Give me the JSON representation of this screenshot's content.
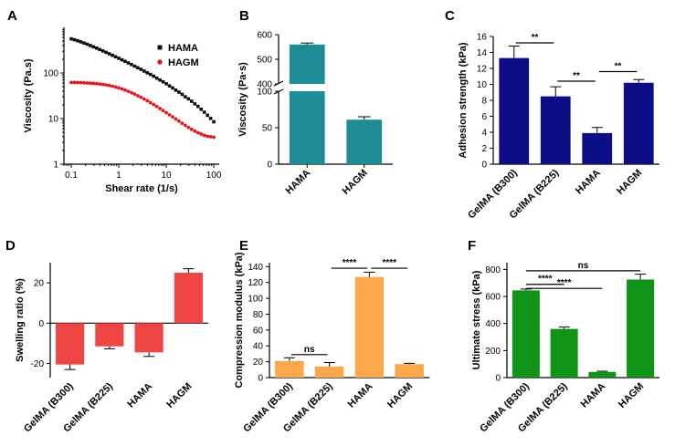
{
  "figure": {
    "panel_labels": [
      "A",
      "B",
      "C",
      "D",
      "E",
      "F"
    ]
  },
  "chart_data": [
    {
      "panel": "A",
      "type": "scatter",
      "xlabel": "Shear rate (1/s)",
      "ylabel": "Viscosity (Pa.s)",
      "xscale": "log",
      "yscale": "log",
      "xlim": [
        0.07,
        130
      ],
      "ylim": [
        1,
        1000
      ],
      "xticks": [
        0.1,
        1,
        10,
        100
      ],
      "xtick_labels": [
        "0.1",
        "1",
        "10",
        "100"
      ],
      "yticks": [
        1,
        10,
        100
      ],
      "ytick_labels": [
        "1",
        "10",
        "100"
      ],
      "legend": "top-right",
      "series": [
        {
          "name": "HAMA",
          "color": "#111111",
          "marker": "square",
          "x": [
            0.1,
            0.1166,
            0.1359,
            0.1585,
            0.1848,
            0.2154,
            0.2512,
            0.2929,
            0.3415,
            0.3981,
            0.4642,
            0.5412,
            0.631,
            0.7356,
            0.8577,
            1,
            1.166,
            1.359,
            1.585,
            1.848,
            2.154,
            2.512,
            2.929,
            3.415,
            3.981,
            4.642,
            5.412,
            6.31,
            7.356,
            8.577,
            10,
            11.66,
            13.59,
            15.85,
            18.48,
            21.54,
            25.12,
            29.29,
            34.15,
            39.81,
            46.42,
            54.12,
            63.1,
            73.56,
            85.77,
            100
          ],
          "y": [
            560,
            535,
            508,
            481,
            454,
            427,
            400,
            374,
            350,
            326,
            304,
            283,
            263,
            244,
            226,
            210,
            194,
            180,
            166,
            153,
            141,
            130,
            120,
            110,
            101,
            93,
            85,
            77,
            70,
            64,
            58,
            52,
            47,
            42,
            38,
            34,
            30,
            27,
            24,
            21,
            18.5,
            16,
            13.8,
            11.8,
            10.1,
            8.5
          ]
        },
        {
          "name": "HAGM",
          "color": "#e8141c",
          "marker": "circle",
          "x": [
            0.1,
            0.1166,
            0.1359,
            0.1585,
            0.1848,
            0.2154,
            0.2512,
            0.2929,
            0.3415,
            0.3981,
            0.4642,
            0.5412,
            0.631,
            0.7356,
            0.8577,
            1,
            1.166,
            1.359,
            1.585,
            1.848,
            2.154,
            2.512,
            2.929,
            3.415,
            3.981,
            4.642,
            5.412,
            6.31,
            7.356,
            8.577,
            10,
            11.66,
            13.59,
            15.85,
            18.48,
            21.54,
            25.12,
            29.29,
            34.15,
            39.81,
            46.42,
            54.12,
            63.1,
            73.56,
            85.77,
            100
          ],
          "y": [
            62,
            61.8,
            61.5,
            61.2,
            60.8,
            60.3,
            59.7,
            59,
            58.2,
            57.2,
            56,
            54.6,
            53,
            51.2,
            49.2,
            47,
            44.6,
            42.1,
            39.6,
            37,
            34.4,
            31.8,
            29.3,
            26.9,
            24.6,
            22.4,
            20.3,
            18.4,
            16.6,
            15,
            13.5,
            12.1,
            10.9,
            9.8,
            8.8,
            7.9,
            7.1,
            6.4,
            5.8,
            5.3,
            4.9,
            4.6,
            4.3,
            4.1,
            4,
            3.9
          ]
        }
      ]
    },
    {
      "panel": "B",
      "type": "bar",
      "xlabel": "",
      "ylabel": "Viscosity (Pa·s)",
      "categories": [
        "HAMA",
        "HAGM"
      ],
      "values": [
        560,
        61
      ],
      "errors": [
        6,
        4
      ],
      "axis_break": true,
      "lower_segment": {
        "ylim": [
          0,
          100
        ],
        "yticks": [
          0,
          50,
          100
        ]
      },
      "upper_segment": {
        "ylim": [
          400,
          600
        ],
        "yticks": [
          400,
          500,
          600
        ]
      },
      "color": "#1f8b96"
    },
    {
      "panel": "C",
      "type": "bar",
      "xlabel": "",
      "ylabel": "Adhesion strength (kPa)",
      "categories": [
        "GelMA (B300)",
        "GelMA (B225)",
        "HAMA",
        "HAGM"
      ],
      "values": [
        13.3,
        8.5,
        3.9,
        10.2
      ],
      "errors": [
        1.5,
        1.2,
        0.7,
        0.4
      ],
      "ylim": [
        0,
        16
      ],
      "yticks": [
        0,
        2,
        4,
        6,
        8,
        10,
        12,
        14,
        16
      ],
      "color": "#0c0c87",
      "annotations": [
        {
          "from": 0,
          "to": 1,
          "label": "**"
        },
        {
          "from": 1,
          "to": 2,
          "label": "**"
        },
        {
          "from": 2,
          "to": 3,
          "label": "**"
        }
      ]
    },
    {
      "panel": "D",
      "type": "bar",
      "xlabel": "",
      "ylabel": "Swelling ratio (%)",
      "categories": [
        "GelMA (B300)",
        "GelMA (B225)",
        "HAMA",
        "HAGM"
      ],
      "values": [
        -20.5,
        -11.5,
        -14.5,
        25
      ],
      "errors": [
        2.5,
        1.2,
        2,
        2
      ],
      "ylim": [
        -27,
        30
      ],
      "yticks": [
        -20,
        0,
        20
      ],
      "color": "#f04545"
    },
    {
      "panel": "E",
      "type": "bar",
      "xlabel": "",
      "ylabel": "Compression modulus (kPa)",
      "categories": [
        "GelMA (B300)",
        "GelMA (B225)",
        "HAMA",
        "HAGM"
      ],
      "values": [
        21,
        14,
        127,
        17
      ],
      "errors": [
        4,
        5,
        6,
        1
      ],
      "ylim": [
        0,
        145
      ],
      "yticks": [
        0,
        20,
        40,
        60,
        80,
        100,
        120,
        140
      ],
      "color": "#fba84c",
      "annotations": [
        {
          "from": 0,
          "to": 1,
          "label": "ns"
        },
        {
          "from": 1,
          "to": 2,
          "label": "****"
        },
        {
          "from": 2,
          "to": 3,
          "label": "****"
        }
      ]
    },
    {
      "panel": "F",
      "type": "bar",
      "xlabel": "",
      "ylabel": "Ultimate stress (kPa)",
      "categories": [
        "GelMA (B300)",
        "GelMA (B225)",
        "HAMA",
        "HAGM"
      ],
      "values": [
        645,
        360,
        42,
        725
      ],
      "errors": [
        10,
        15,
        5,
        40
      ],
      "ylim": [
        0,
        850
      ],
      "yticks": [
        0,
        200,
        400,
        600,
        800
      ],
      "color": "#0f9418",
      "annotations": [
        {
          "from": 0,
          "to": 1,
          "label": "****"
        },
        {
          "from": 0,
          "to": 2,
          "label": "****"
        },
        {
          "from": 0,
          "to": 3,
          "label": "ns"
        }
      ]
    }
  ]
}
